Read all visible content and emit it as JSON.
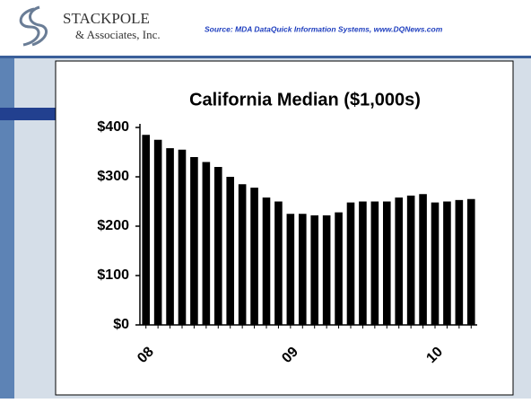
{
  "header": {
    "logo_name": "STACKPOLE",
    "logo_sub": "& Associates, Inc.",
    "source": "Source: MDA DataQuick Information Systems, www.DQNews.com"
  },
  "chart_data": {
    "type": "bar",
    "title": "California Median ($1,000s)",
    "categories": [
      "08",
      null,
      null,
      null,
      null,
      null,
      null,
      null,
      null,
      null,
      null,
      null,
      "09",
      null,
      null,
      null,
      null,
      null,
      null,
      null,
      null,
      null,
      null,
      null,
      "10",
      null,
      null,
      null
    ],
    "values": [
      385,
      375,
      358,
      355,
      340,
      330,
      320,
      300,
      285,
      278,
      258,
      250,
      225,
      225,
      222,
      222,
      228,
      248,
      250,
      250,
      250,
      258,
      262,
      265,
      248,
      250,
      253,
      255
    ],
    "color": "#000000",
    "ylim": [
      0,
      400
    ],
    "yticks": [
      {
        "value": 0,
        "label": "$0"
      },
      {
        "value": 100,
        "label": "$100"
      },
      {
        "value": 200,
        "label": "$200"
      },
      {
        "value": 300,
        "label": "$300"
      },
      {
        "value": 400,
        "label": "$400"
      }
    ]
  }
}
